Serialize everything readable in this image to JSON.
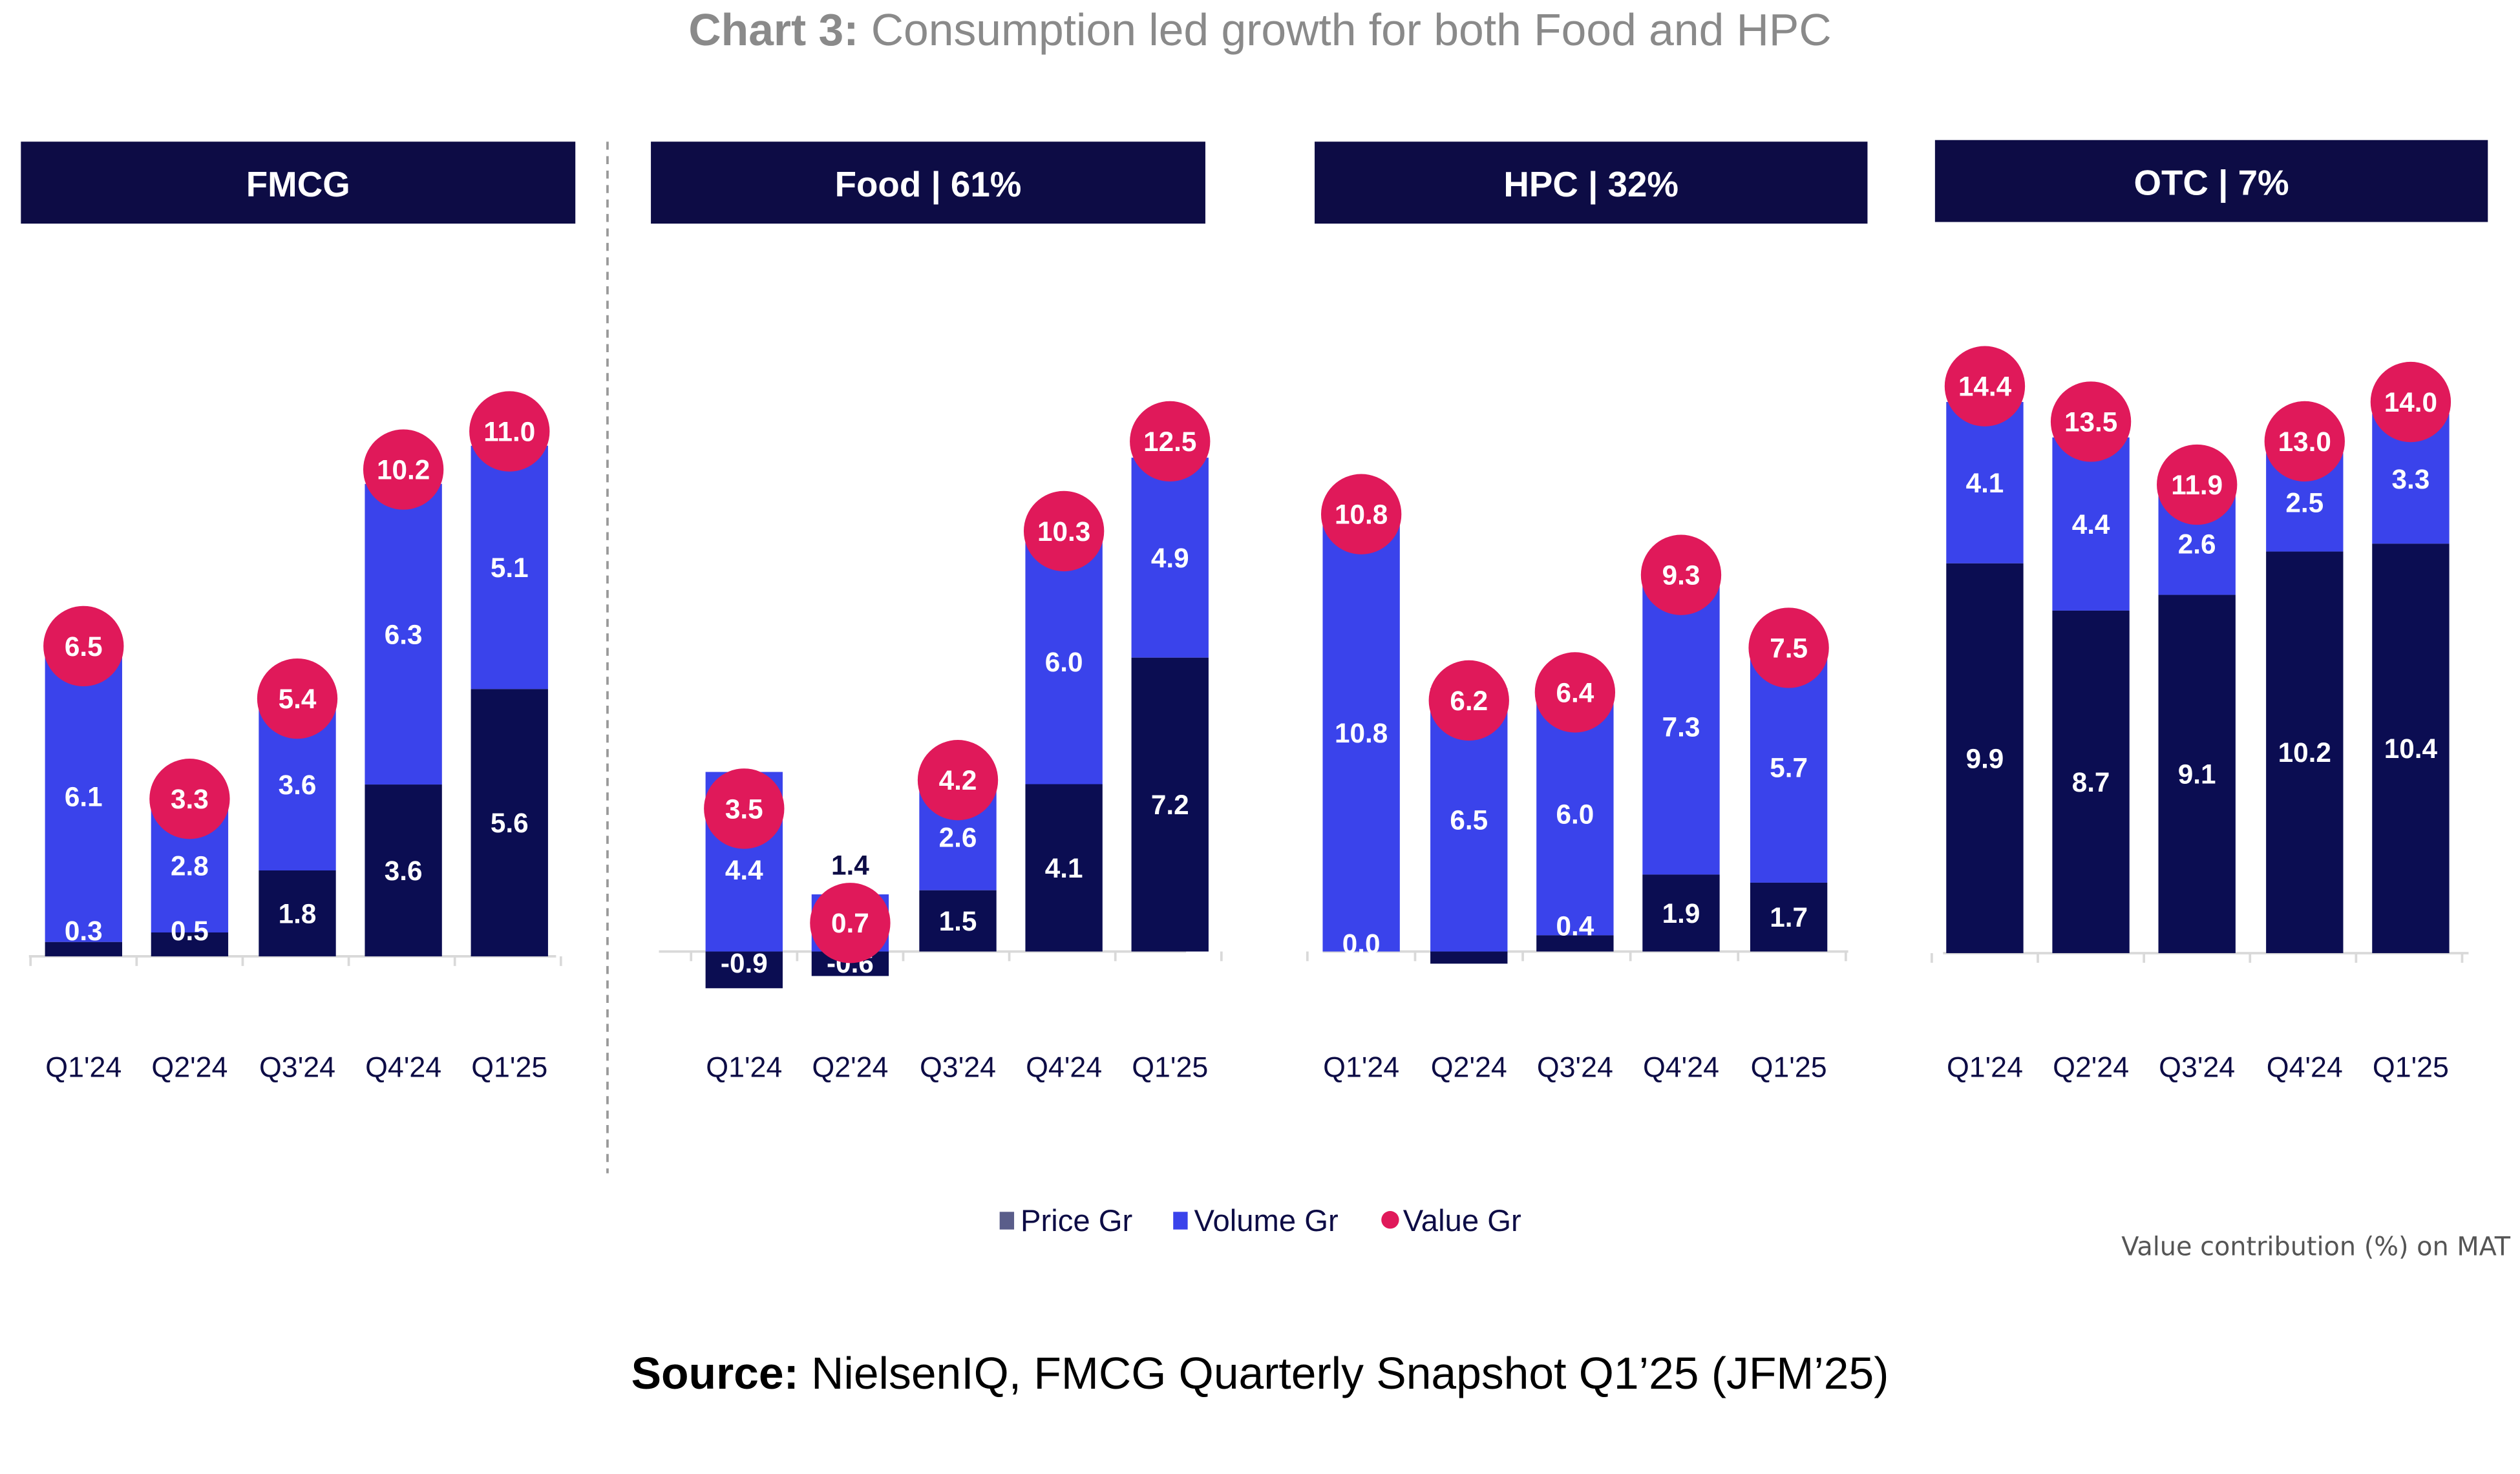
{
  "title": {
    "prefix": "Chart 3:",
    "text": " Consumption led growth for both Food and HPC"
  },
  "legend": {
    "position": "bottom-center",
    "items": [
      {
        "label": "Price Gr",
        "color": "#5a5d8a"
      },
      {
        "label": "Volume Gr",
        "color": "#3a43eb"
      },
      {
        "label": "Value Gr",
        "color": "#e0195a"
      }
    ]
  },
  "footnote": "Value contribution (%) on MAT",
  "source": {
    "prefix": "Source:",
    "text": " NielsenIQ, FMCG Quarterly Snapshot Q1’25 (JFM’25)"
  },
  "colors": {
    "price": "#0b0d52",
    "volume": "#3a43eb",
    "value": "#e0195a",
    "header": "#0d0c45"
  },
  "chart_data": [
    {
      "type": "bar",
      "stacked": true,
      "title": "FMCG",
      "categories": [
        "Q1'24",
        "Q2'24",
        "Q3'24",
        "Q4'24",
        "Q1'25"
      ],
      "series": [
        {
          "name": "Price Gr",
          "values": [
            0.3,
            0.5,
            1.8,
            3.6,
            5.6
          ]
        },
        {
          "name": "Volume Gr",
          "values": [
            6.1,
            2.8,
            3.6,
            6.3,
            5.1
          ]
        },
        {
          "name": "Value Gr",
          "marker": "circle",
          "values": [
            6.5,
            3.3,
            5.4,
            10.2,
            11.0
          ]
        }
      ]
    },
    {
      "type": "bar",
      "stacked": true,
      "title": "Food | 61%",
      "categories": [
        "Q1'24",
        "Q2'24",
        "Q3'24",
        "Q4'24",
        "Q1'25"
      ],
      "series": [
        {
          "name": "Price Gr",
          "values": [
            -0.9,
            -0.6,
            1.5,
            4.1,
            7.2
          ]
        },
        {
          "name": "Volume Gr",
          "values": [
            4.4,
            1.4,
            2.6,
            6.0,
            4.9
          ]
        },
        {
          "name": "Value Gr",
          "marker": "circle",
          "values": [
            3.5,
            0.7,
            4.2,
            10.3,
            12.5
          ]
        }
      ]
    },
    {
      "type": "bar",
      "stacked": true,
      "title": "HPC | 32%",
      "categories": [
        "Q1'24",
        "Q2'24",
        "Q3'24",
        "Q4'24",
        "Q1'25"
      ],
      "series": [
        {
          "name": "Price Gr",
          "values": [
            0.0,
            null,
            0.4,
            1.9,
            1.7
          ]
        },
        {
          "name": "Volume Gr",
          "values": [
            10.8,
            6.5,
            6.0,
            7.3,
            5.7
          ]
        },
        {
          "name": "Value Gr",
          "marker": "circle",
          "values": [
            10.8,
            6.2,
            6.4,
            9.3,
            7.5
          ]
        }
      ]
    },
    {
      "type": "bar",
      "stacked": true,
      "title": "OTC | 7%",
      "categories": [
        "Q1'24",
        "Q2'24",
        "Q3'24",
        "Q4'24",
        "Q1'25"
      ],
      "series": [
        {
          "name": "Price Gr",
          "values": [
            9.9,
            8.7,
            9.1,
            10.2,
            10.4
          ]
        },
        {
          "name": "Volume Gr",
          "values": [
            4.1,
            4.4,
            2.6,
            2.5,
            3.3
          ]
        },
        {
          "name": "Value Gr",
          "marker": "circle",
          "values": [
            14.4,
            13.5,
            11.9,
            13.0,
            14.0
          ]
        }
      ]
    }
  ]
}
